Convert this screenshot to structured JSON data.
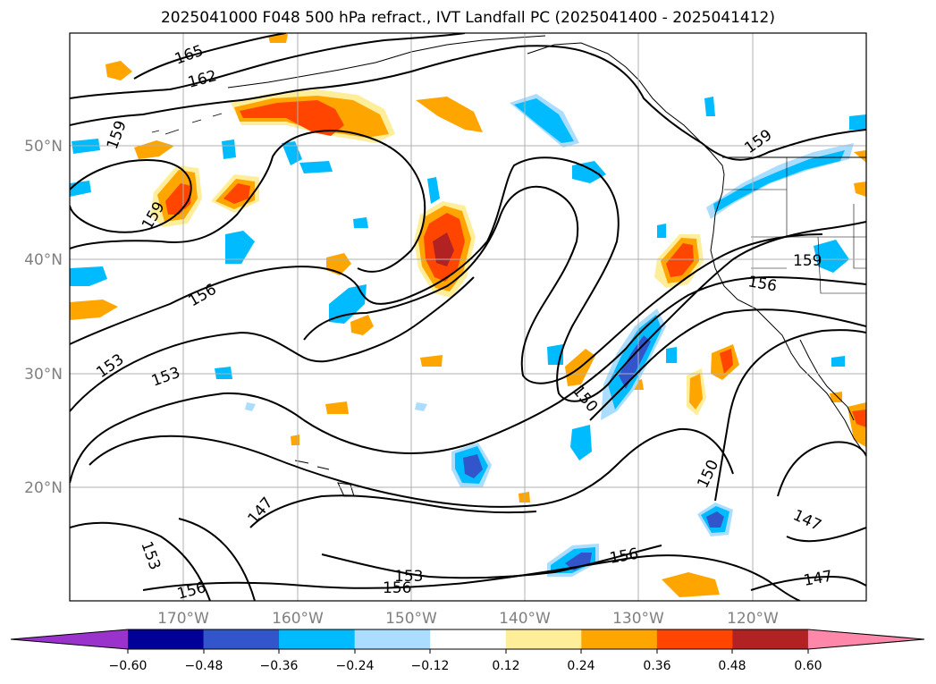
{
  "figure": {
    "title": "2025041000 F048 500 hPa refract., IVT Landfall PC (2025041400 - 2025041412)"
  },
  "axes": {
    "lat_labels": [
      "50°N",
      "40°N",
      "30°N",
      "20°N"
    ],
    "lon_labels": [
      "170°W",
      "160°W",
      "150°W",
      "140°W",
      "130°W",
      "120°W"
    ]
  },
  "contour_labels": [
    "165",
    "162",
    "159",
    "159",
    "159",
    "159",
    "156",
    "156",
    "156",
    "156",
    "156",
    "153",
    "153",
    "153",
    "153",
    "150",
    "150",
    "147",
    "147",
    "147"
  ],
  "colorbar": {
    "colors": [
      "#9933cc",
      "#000099",
      "#3355cc",
      "#00bbff",
      "#aaddff",
      "#ffffff",
      "#ffee99",
      "#ffa500",
      "#ff4500",
      "#b22222",
      "#ff88aa"
    ],
    "tick_labels": [
      "−0.60",
      "−0.48",
      "−0.36",
      "−0.24",
      "−0.12",
      "0.12",
      "0.24",
      "0.36",
      "0.48",
      "0.60"
    ]
  },
  "colors": {
    "grid": "#b0b0b0",
    "contour": "#000000",
    "tick_text": "#808080"
  }
}
